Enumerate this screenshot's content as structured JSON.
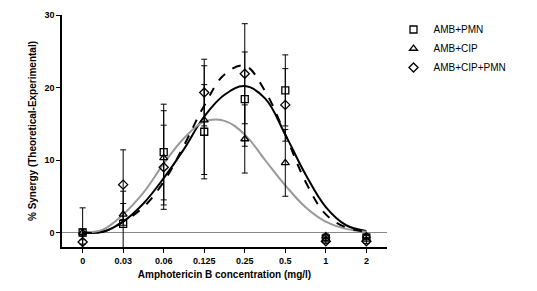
{
  "chart_data": {
    "type": "scatter",
    "x_label": "Amphotericin B concentration (mg/l)",
    "y_label": "% Synergy (Theoretical-Experimental)",
    "categories": [
      "0",
      null,
      "0.03",
      null,
      "0.06",
      null,
      "0.125",
      null,
      "0.25",
      null,
      "0.5",
      null,
      "1",
      null,
      "2"
    ],
    "ylim": [
      -2,
      30
    ],
    "yticks": [
      0,
      10,
      20,
      30
    ],
    "grid": false,
    "legend": "right",
    "series": [
      {
        "name": "AMB+PMN",
        "type": "scatter",
        "marker": "square-open",
        "color": "#000000",
        "values": [
          0,
          null,
          1.2,
          null,
          11.1,
          null,
          13.9,
          null,
          18.4,
          null,
          19.6,
          null,
          -0.8,
          null,
          -0.7
        ],
        "error": [
          3.4,
          null,
          4.5,
          null,
          6.6,
          null,
          6.5,
          null,
          6.5,
          null,
          4.9,
          null,
          0.3,
          null,
          0.3
        ]
      },
      {
        "name": "AMB+CIP",
        "type": "scatter",
        "marker": "triangle-up-open",
        "color": "#000000",
        "values": [
          0,
          null,
          2.5,
          null,
          10.3,
          null,
          15.5,
          null,
          12.9,
          null,
          9.6,
          null,
          -0.5,
          null,
          -0.5
        ],
        "error": [
          0.5,
          null,
          1.5,
          null,
          6.5,
          null,
          7.5,
          null,
          4.7,
          null,
          4.6,
          null,
          0.3,
          null,
          0.3
        ]
      },
      {
        "name": "AMB+CIP+PMN",
        "type": "scatter",
        "marker": "diamond-open",
        "color": "#000000",
        "values": [
          -1.3,
          null,
          6.6,
          null,
          9.0,
          null,
          19.3,
          null,
          21.9,
          null,
          17.6,
          null,
          -1.2,
          null,
          -1.2
        ],
        "error": [
          0.3,
          null,
          4.8,
          null,
          5.8,
          null,
          4.6,
          null,
          6.9,
          null,
          5.0,
          null,
          0.3,
          null,
          0.3
        ]
      },
      {
        "type": "line",
        "line_style": "solid",
        "color": "#000000",
        "values": [
          0,
          0.1,
          1.5,
          4,
          7.5,
          11.5,
          16,
          19,
          20.2,
          18.5,
          13.5,
          8,
          3.5,
          1,
          0.2
        ]
      },
      {
        "type": "line",
        "line_style": "solid",
        "color": "#999999",
        "values": [
          0,
          0.4,
          2.5,
          5.5,
          9.5,
          13,
          15.3,
          15.4,
          13.5,
          10,
          6.5,
          3.5,
          1.5,
          0.5,
          0.1
        ]
      },
      {
        "type": "line",
        "line_style": "dash",
        "color": "#000000",
        "values": [
          0,
          0.1,
          1.5,
          3.5,
          7,
          12,
          17.5,
          21.8,
          23,
          19.5,
          13.5,
          7,
          2.5,
          0.7,
          0.1
        ]
      }
    ]
  }
}
